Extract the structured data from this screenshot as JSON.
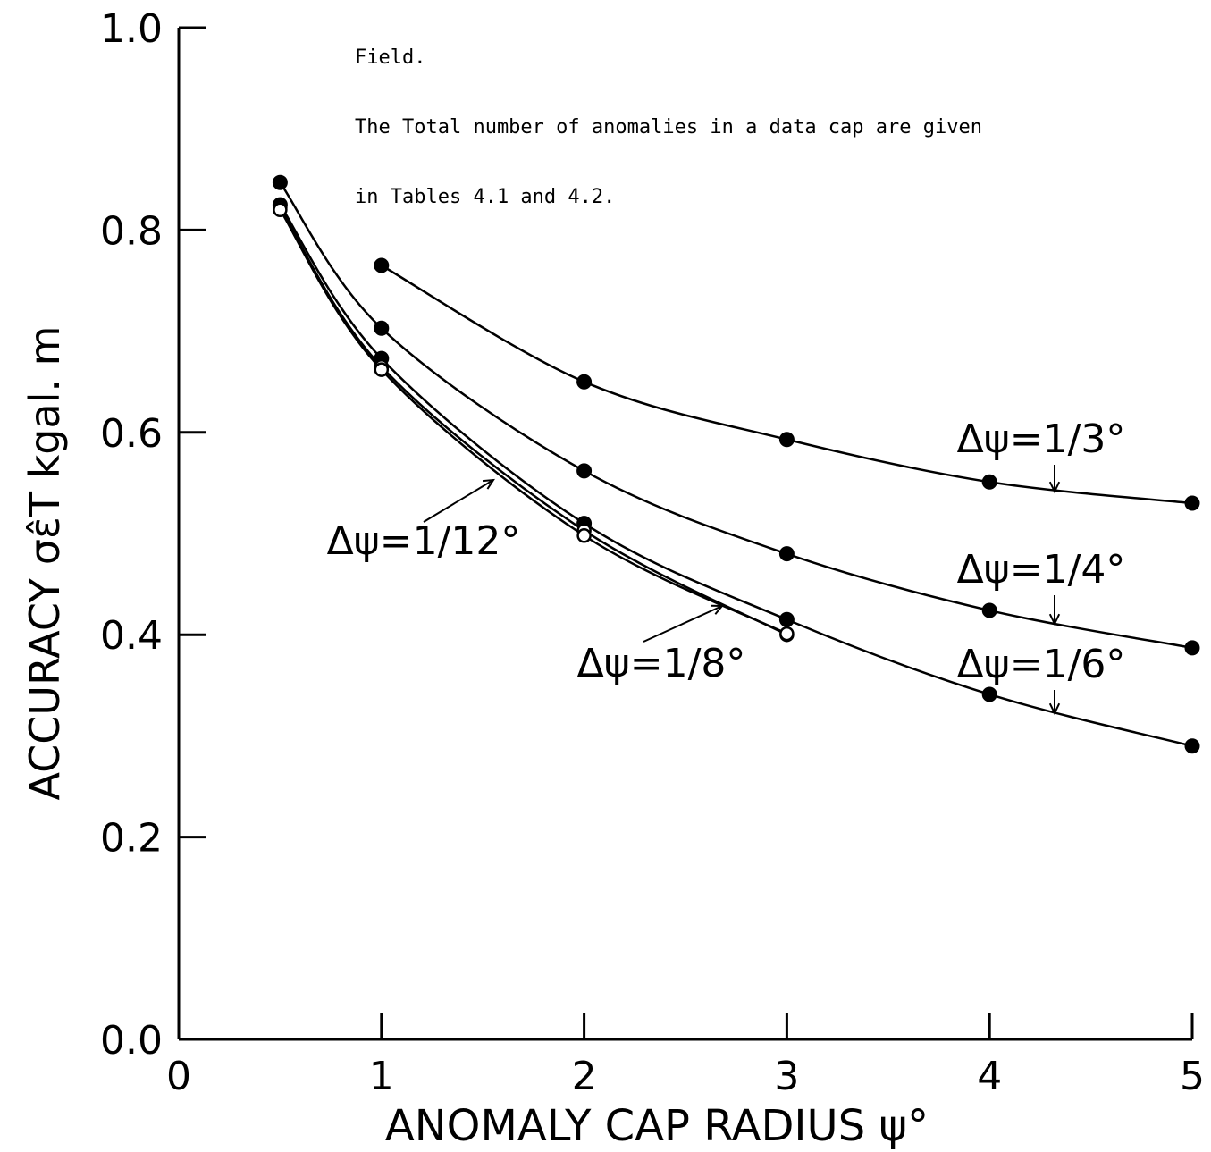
{
  "note": {
    "lines": [
      "Field.",
      "The Total number of anomalies in a data cap are given",
      "in Tables 4.1 and 4.2."
    ]
  },
  "chart_data": {
    "type": "line",
    "xlabel": "ANOMALY CAP RADIUS ψ°",
    "ylabel": "ACCURACY σε̂T kgal. m",
    "xlim": [
      0,
      5
    ],
    "ylim": [
      0.0,
      1.0
    ],
    "x_ticks": [
      "0",
      "1",
      "2",
      "3",
      "4",
      "5"
    ],
    "y_ticks": [
      "0.0",
      "0.2",
      "0.4",
      "0.6",
      "0.8",
      "1.0"
    ],
    "grid": false,
    "legend": "none",
    "series": [
      {
        "name": "Δψ=1/3°",
        "marker": "filled",
        "x": [
          1,
          2,
          3,
          4,
          5
        ],
        "values": [
          0.765,
          0.65,
          0.593,
          0.551,
          0.53
        ]
      },
      {
        "name": "Δψ=1/4°",
        "marker": "filled",
        "x": [
          0.5,
          1,
          2,
          3,
          4,
          5
        ],
        "values": [
          0.847,
          0.703,
          0.562,
          0.48,
          0.424,
          0.387
        ]
      },
      {
        "name": "Δψ=1/6°",
        "marker": "filled",
        "x": [
          0.5,
          1,
          2,
          3,
          4,
          5
        ],
        "values": [
          0.825,
          0.673,
          0.51,
          0.415,
          0.341,
          0.29
        ]
      },
      {
        "name": "Δψ=1/8°",
        "marker": "open",
        "x": [
          0.5,
          1,
          2,
          3
        ],
        "values": [
          0.822,
          0.665,
          0.503,
          0.4
        ]
      },
      {
        "name": "Δψ=1/12°",
        "marker": "open",
        "x": [
          0.5,
          1,
          2,
          3
        ],
        "values": [
          0.82,
          0.662,
          0.498,
          0.401
        ]
      }
    ],
    "annotations": [
      {
        "text": "Δψ=1/3°",
        "series": "Δψ=1/3°"
      },
      {
        "text": "Δψ=1/4°",
        "series": "Δψ=1/4°"
      },
      {
        "text": "Δψ=1/6°",
        "series": "Δψ=1/6°"
      },
      {
        "text": "Δψ=1/8°",
        "series": "Δψ=1/8°"
      },
      {
        "text": "Δψ=1/12°",
        "series": "Δψ=1/12°"
      }
    ]
  }
}
